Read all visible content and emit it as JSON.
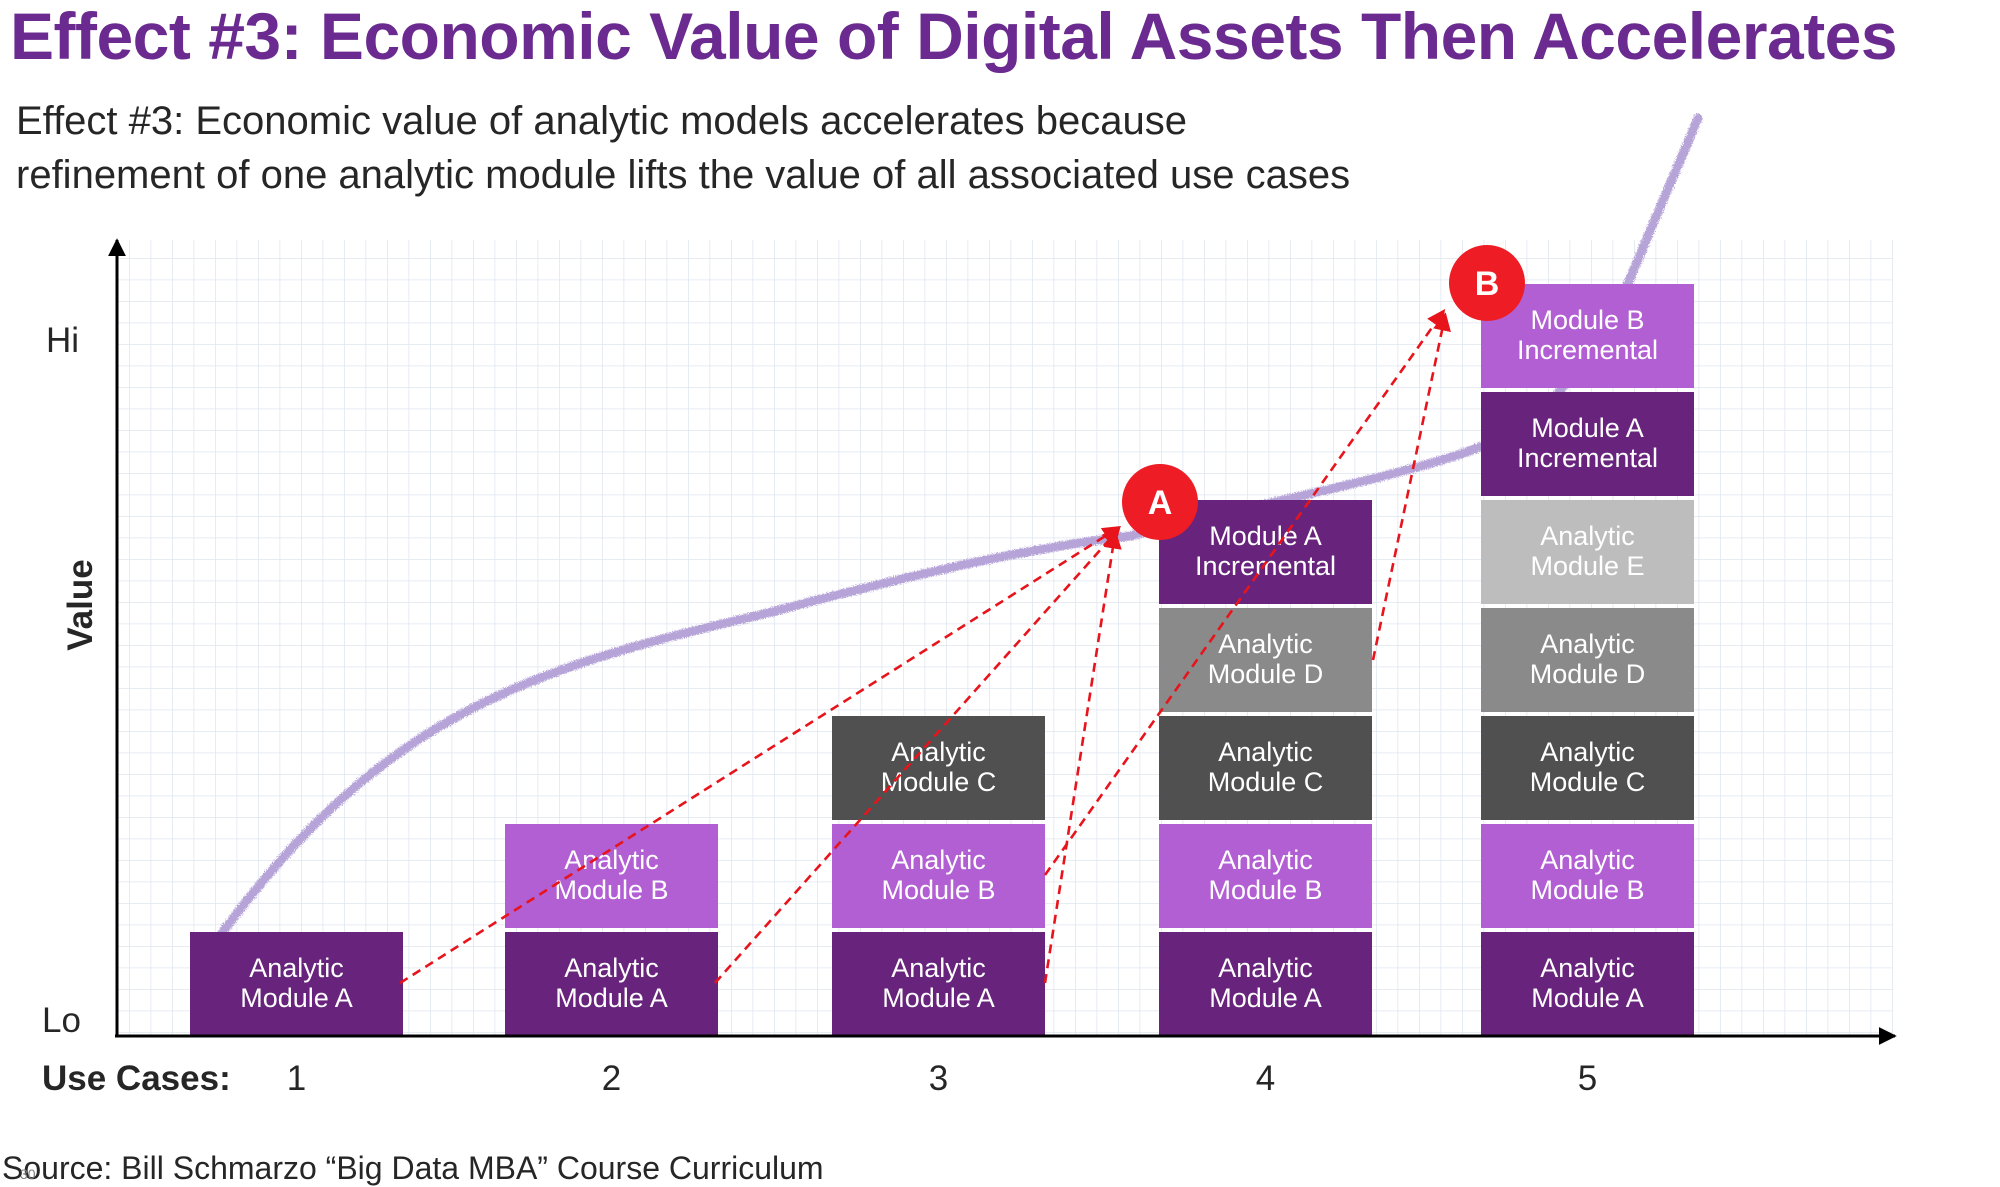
{
  "title": "Effect #3: Economic Value of Digital Assets Then Accelerates",
  "subtitle": {
    "line1": "Effect #3: Economic value of analytic models accelerates because",
    "line2": "refinement of one analytic module lifts the value of all associated use cases"
  },
  "axis": {
    "y_label": "Value",
    "y_hi": "Hi",
    "y_lo": "Lo",
    "x_label": "Use Cases:"
  },
  "colors": {
    "module_a": "#68247c",
    "module_b": "#b25fd3",
    "module_c": "#505050",
    "module_d": "#8a8a8a",
    "module_e": "#bdbdbd",
    "incremental": "#68247c",
    "curve": "#b3a0d6",
    "arrow": "#e8141c",
    "marker": "#ee1c24",
    "grid": "#dfe6ef"
  },
  "use_cases": [
    {
      "label": "1",
      "blocks": [
        {
          "name": "module-a",
          "line1": "Analytic",
          "line2": "Module A",
          "color": "#68247c"
        }
      ]
    },
    {
      "label": "2",
      "blocks": [
        {
          "name": "module-a",
          "line1": "Analytic",
          "line2": "Module A",
          "color": "#68247c"
        },
        {
          "name": "module-b",
          "line1": "Analytic",
          "line2": "Module B",
          "color": "#b25fd3"
        }
      ]
    },
    {
      "label": "3",
      "blocks": [
        {
          "name": "module-a",
          "line1": "Analytic",
          "line2": "Module A",
          "color": "#68247c"
        },
        {
          "name": "module-b",
          "line1": "Analytic",
          "line2": "Module B",
          "color": "#b25fd3"
        },
        {
          "name": "module-c",
          "line1": "Analytic",
          "line2": "Module C",
          "color": "#505050"
        }
      ]
    },
    {
      "label": "4",
      "blocks": [
        {
          "name": "module-a",
          "line1": "Analytic",
          "line2": "Module A",
          "color": "#68247c"
        },
        {
          "name": "module-b",
          "line1": "Analytic",
          "line2": "Module B",
          "color": "#b25fd3"
        },
        {
          "name": "module-c",
          "line1": "Analytic",
          "line2": "Module C",
          "color": "#505050"
        },
        {
          "name": "module-d",
          "line1": "Analytic",
          "line2": "Module D",
          "color": "#8a8a8a"
        },
        {
          "name": "module-a-incremental",
          "line1": "Module A",
          "line2": "Incremental",
          "color": "#68247c"
        }
      ]
    },
    {
      "label": "5",
      "blocks": [
        {
          "name": "module-a",
          "line1": "Analytic",
          "line2": "Module A",
          "color": "#68247c"
        },
        {
          "name": "module-b",
          "line1": "Analytic",
          "line2": "Module B",
          "color": "#b25fd3"
        },
        {
          "name": "module-c",
          "line1": "Analytic",
          "line2": "Module C",
          "color": "#505050"
        },
        {
          "name": "module-d",
          "line1": "Analytic",
          "line2": "Module D",
          "color": "#8a8a8a"
        },
        {
          "name": "module-e",
          "line1": "Analytic",
          "line2": "Module E",
          "color": "#bdbdbd"
        },
        {
          "name": "module-a-incremental",
          "line1": "Module A",
          "line2": "Incremental",
          "color": "#68247c"
        },
        {
          "name": "module-b-incremental",
          "line1": "Module B",
          "line2": "Incremental",
          "color": "#b25fd3"
        }
      ]
    }
  ],
  "markers": {
    "a": "A",
    "b": "B"
  },
  "source": "Source: Bill Schmarzo “Big Data MBA” Course Curriculum",
  "slide_number": "30"
}
